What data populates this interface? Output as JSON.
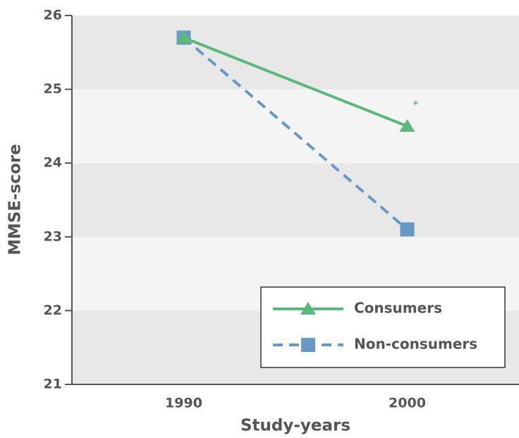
{
  "chart_data": {
    "type": "line",
    "x_label": "Study-years",
    "y_label": "MMSE-score",
    "x": [
      1990,
      2000
    ],
    "series": [
      {
        "name": "Consumers",
        "color": "#5cb87a",
        "marker": "triangle",
        "dash": false,
        "values": [
          25.7,
          24.5
        ]
      },
      {
        "name": "Non-consumers",
        "color": "#6699c6",
        "marker": "square",
        "dash": true,
        "values": [
          25.7,
          23.1
        ]
      }
    ],
    "annotation": "*",
    "xlim": [
      1985,
      2005
    ],
    "xticks": [
      1990,
      2000
    ],
    "ylim": [
      21,
      26
    ],
    "yticks": [
      21,
      22,
      23,
      24,
      25,
      26
    ],
    "background_bands": true,
    "legend": "lower right"
  }
}
